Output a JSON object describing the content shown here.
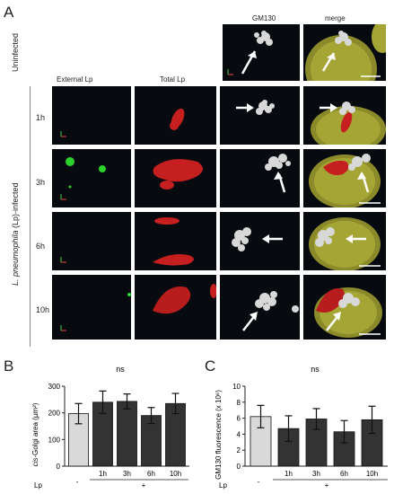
{
  "panel_a": {
    "letter": "A",
    "columns": [
      "External Lp",
      "Total Lp",
      "GM130",
      "merge"
    ],
    "uninfected_label": "Uninfected",
    "infected_label_italic": "L. pneumophila",
    "infected_label_rest": " (Lp)-infected",
    "rows": [
      "1h",
      "3h",
      "6h",
      "10h"
    ]
  },
  "panel_b": {
    "letter": "B",
    "sig": "ns",
    "ylabel_italic": "cis",
    "ylabel_rest": "-Golgi area (µm²)",
    "lp_label": "Lp",
    "minus": "-",
    "plus": "+"
  },
  "panel_c": {
    "letter": "C",
    "sig": "ns",
    "ylabel": "GM130 fluorescence (x 10⁶)",
    "lp_label": "Lp",
    "minus": "-",
    "plus": "+"
  },
  "chart_data": [
    {
      "type": "bar",
      "categories": [
        "-",
        "1h",
        "3h",
        "6h",
        "10h"
      ],
      "values": [
        197,
        240,
        243,
        190,
        235
      ],
      "errors": [
        38,
        42,
        28,
        30,
        38
      ],
      "ylabel": "cis-Golgi area (µm²)",
      "ylim": [
        0,
        300
      ],
      "yticks": [
        0,
        100,
        200,
        300
      ],
      "colors": [
        "#d9d9d9",
        "#333333",
        "#333333",
        "#333333",
        "#333333"
      ]
    },
    {
      "type": "bar",
      "categories": [
        "-",
        "1h",
        "3h",
        "6h",
        "10h"
      ],
      "values": [
        6.2,
        4.7,
        5.9,
        4.3,
        5.8
      ],
      "errors": [
        1.4,
        1.6,
        1.3,
        1.4,
        1.7
      ],
      "ylabel": "GM130 fluorescence (x 10⁶)",
      "ylim": [
        0,
        10
      ],
      "yticks": [
        0,
        2,
        4,
        6,
        8,
        10
      ],
      "colors": [
        "#d9d9d9",
        "#333333",
        "#333333",
        "#333333",
        "#333333"
      ]
    }
  ]
}
